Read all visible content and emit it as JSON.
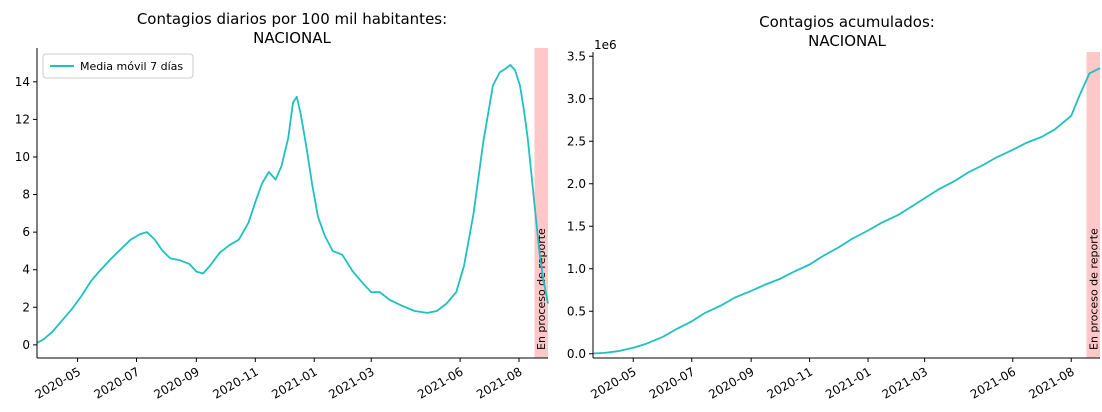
{
  "chart_data": [
    {
      "type": "line",
      "title_line1": "Contagios diarios por 100 mil habitantes:",
      "title_line2": "NACIONAL",
      "xlabel": "",
      "ylabel": "",
      "ylim": [
        -0.7,
        15.8
      ],
      "yticks": [
        0,
        2,
        4,
        6,
        8,
        10,
        12,
        14
      ],
      "ytick_labels": [
        "0",
        "2",
        "4",
        "6",
        "8",
        "10",
        "12",
        "14"
      ],
      "xlim": [
        "2020-03-20",
        "2021-08-31"
      ],
      "xticks": [
        "2020-05-01",
        "2020-07-01",
        "2020-09-01",
        "2020-11-01",
        "2021-01-01",
        "2021-03-01",
        "2021-06-01",
        "2021-08-01"
      ],
      "xtick_labels": [
        "2020-05",
        "2020-07",
        "2020-09",
        "2020-11",
        "2021-01",
        "2021-03",
        "2021-06",
        "2021-08"
      ],
      "legend": {
        "placement": "top-left",
        "label": "Media móvil 7 días"
      },
      "line_color": "#1fc0c0",
      "shade": {
        "start": "2021-08-17",
        "end": "2021-08-31",
        "color": "#ffc8c8",
        "label": "En proceso de reporte"
      },
      "grid": false,
      "series": [
        {
          "name": "Media móvil 7 días",
          "x": [
            "2020-03-20",
            "2020-03-27",
            "2020-04-05",
            "2020-04-15",
            "2020-04-25",
            "2020-05-05",
            "2020-05-15",
            "2020-05-25",
            "2020-06-05",
            "2020-06-15",
            "2020-06-25",
            "2020-07-05",
            "2020-07-12",
            "2020-07-20",
            "2020-07-28",
            "2020-08-05",
            "2020-08-15",
            "2020-08-25",
            "2020-09-01",
            "2020-09-08",
            "2020-09-15",
            "2020-09-25",
            "2020-10-05",
            "2020-10-15",
            "2020-10-25",
            "2020-11-01",
            "2020-11-08",
            "2020-11-15",
            "2020-11-22",
            "2020-11-28",
            "2020-12-05",
            "2020-12-10",
            "2020-12-14",
            "2020-12-18",
            "2020-12-24",
            "2020-12-30",
            "2021-01-05",
            "2021-01-12",
            "2021-01-20",
            "2021-01-30",
            "2021-02-10",
            "2021-02-20",
            "2021-03-01",
            "2021-03-10",
            "2021-03-20",
            "2021-04-01",
            "2021-04-15",
            "2021-04-28",
            "2021-05-08",
            "2021-05-18",
            "2021-05-28",
            "2021-06-05",
            "2021-06-15",
            "2021-06-25",
            "2021-07-05",
            "2021-07-12",
            "2021-07-18",
            "2021-07-23",
            "2021-07-28",
            "2021-08-02",
            "2021-08-06",
            "2021-08-10",
            "2021-08-14",
            "2021-08-18",
            "2021-08-22",
            "2021-08-26",
            "2021-08-31"
          ],
          "y": [
            0.1,
            0.3,
            0.7,
            1.3,
            1.9,
            2.6,
            3.4,
            4.0,
            4.6,
            5.1,
            5.6,
            5.9,
            6.0,
            5.6,
            5.0,
            4.6,
            4.5,
            4.3,
            3.9,
            3.8,
            4.2,
            4.9,
            5.3,
            5.6,
            6.5,
            7.6,
            8.6,
            9.2,
            8.8,
            9.5,
            11.0,
            12.9,
            13.2,
            12.3,
            10.5,
            8.5,
            6.8,
            5.8,
            5.0,
            4.8,
            3.9,
            3.3,
            2.8,
            2.8,
            2.4,
            2.1,
            1.8,
            1.7,
            1.8,
            2.2,
            2.8,
            4.2,
            7.0,
            10.8,
            13.8,
            14.5,
            14.7,
            14.9,
            14.6,
            13.8,
            12.5,
            11.0,
            9.0,
            7.0,
            5.0,
            3.5,
            2.2
          ]
        }
      ]
    },
    {
      "type": "line",
      "title_line1": "Contagios acumulados:",
      "title_line2": "NACIONAL",
      "xlabel": "",
      "ylabel": "",
      "y_multiplier": "1e6",
      "ylim": [
        -0.05,
        3.55
      ],
      "yticks": [
        0,
        0.5,
        1.0,
        1.5,
        2.0,
        2.5,
        3.0,
        3.5
      ],
      "ytick_labels": [
        "0.0",
        "0.5",
        "1.0",
        "1.5",
        "2.0",
        "2.5",
        "3.0",
        "3.5"
      ],
      "xlim": [
        "2020-03-20",
        "2021-08-31"
      ],
      "xticks": [
        "2020-05-01",
        "2020-07-01",
        "2020-09-01",
        "2020-11-01",
        "2021-01-01",
        "2021-03-01",
        "2021-06-01",
        "2021-08-01"
      ],
      "xtick_labels": [
        "2020-05",
        "2020-07",
        "2020-09",
        "2020-11",
        "2021-01",
        "2021-03",
        "2021-06",
        "2021-08"
      ],
      "line_color": "#1fc0c0",
      "shade": {
        "start": "2021-08-17",
        "end": "2021-08-31",
        "color": "#ffc8c8",
        "label": "En proceso de reporte"
      },
      "grid": false,
      "series": [
        {
          "x": [
            "2020-03-20",
            "2020-04-01",
            "2020-04-15",
            "2020-05-01",
            "2020-05-15",
            "2020-06-01",
            "2020-06-15",
            "2020-07-01",
            "2020-07-15",
            "2020-08-01",
            "2020-08-15",
            "2020-09-01",
            "2020-09-15",
            "2020-10-01",
            "2020-10-15",
            "2020-11-01",
            "2020-11-15",
            "2020-12-01",
            "2020-12-15",
            "2021-01-01",
            "2021-01-15",
            "2021-02-01",
            "2021-02-15",
            "2021-03-01",
            "2021-03-15",
            "2021-04-01",
            "2021-04-15",
            "2021-05-01",
            "2021-05-15",
            "2021-06-01",
            "2021-06-15",
            "2021-07-01",
            "2021-07-15",
            "2021-08-01",
            "2021-08-10",
            "2021-08-20",
            "2021-08-31"
          ],
          "y": [
            0.003,
            0.01,
            0.03,
            0.07,
            0.12,
            0.2,
            0.29,
            0.38,
            0.48,
            0.57,
            0.66,
            0.74,
            0.81,
            0.88,
            0.96,
            1.05,
            1.15,
            1.25,
            1.35,
            1.45,
            1.54,
            1.63,
            1.73,
            1.83,
            1.93,
            2.03,
            2.13,
            2.22,
            2.31,
            2.4,
            2.48,
            2.55,
            2.64,
            2.8,
            3.05,
            3.3,
            3.36
          ]
        }
      ]
    }
  ]
}
